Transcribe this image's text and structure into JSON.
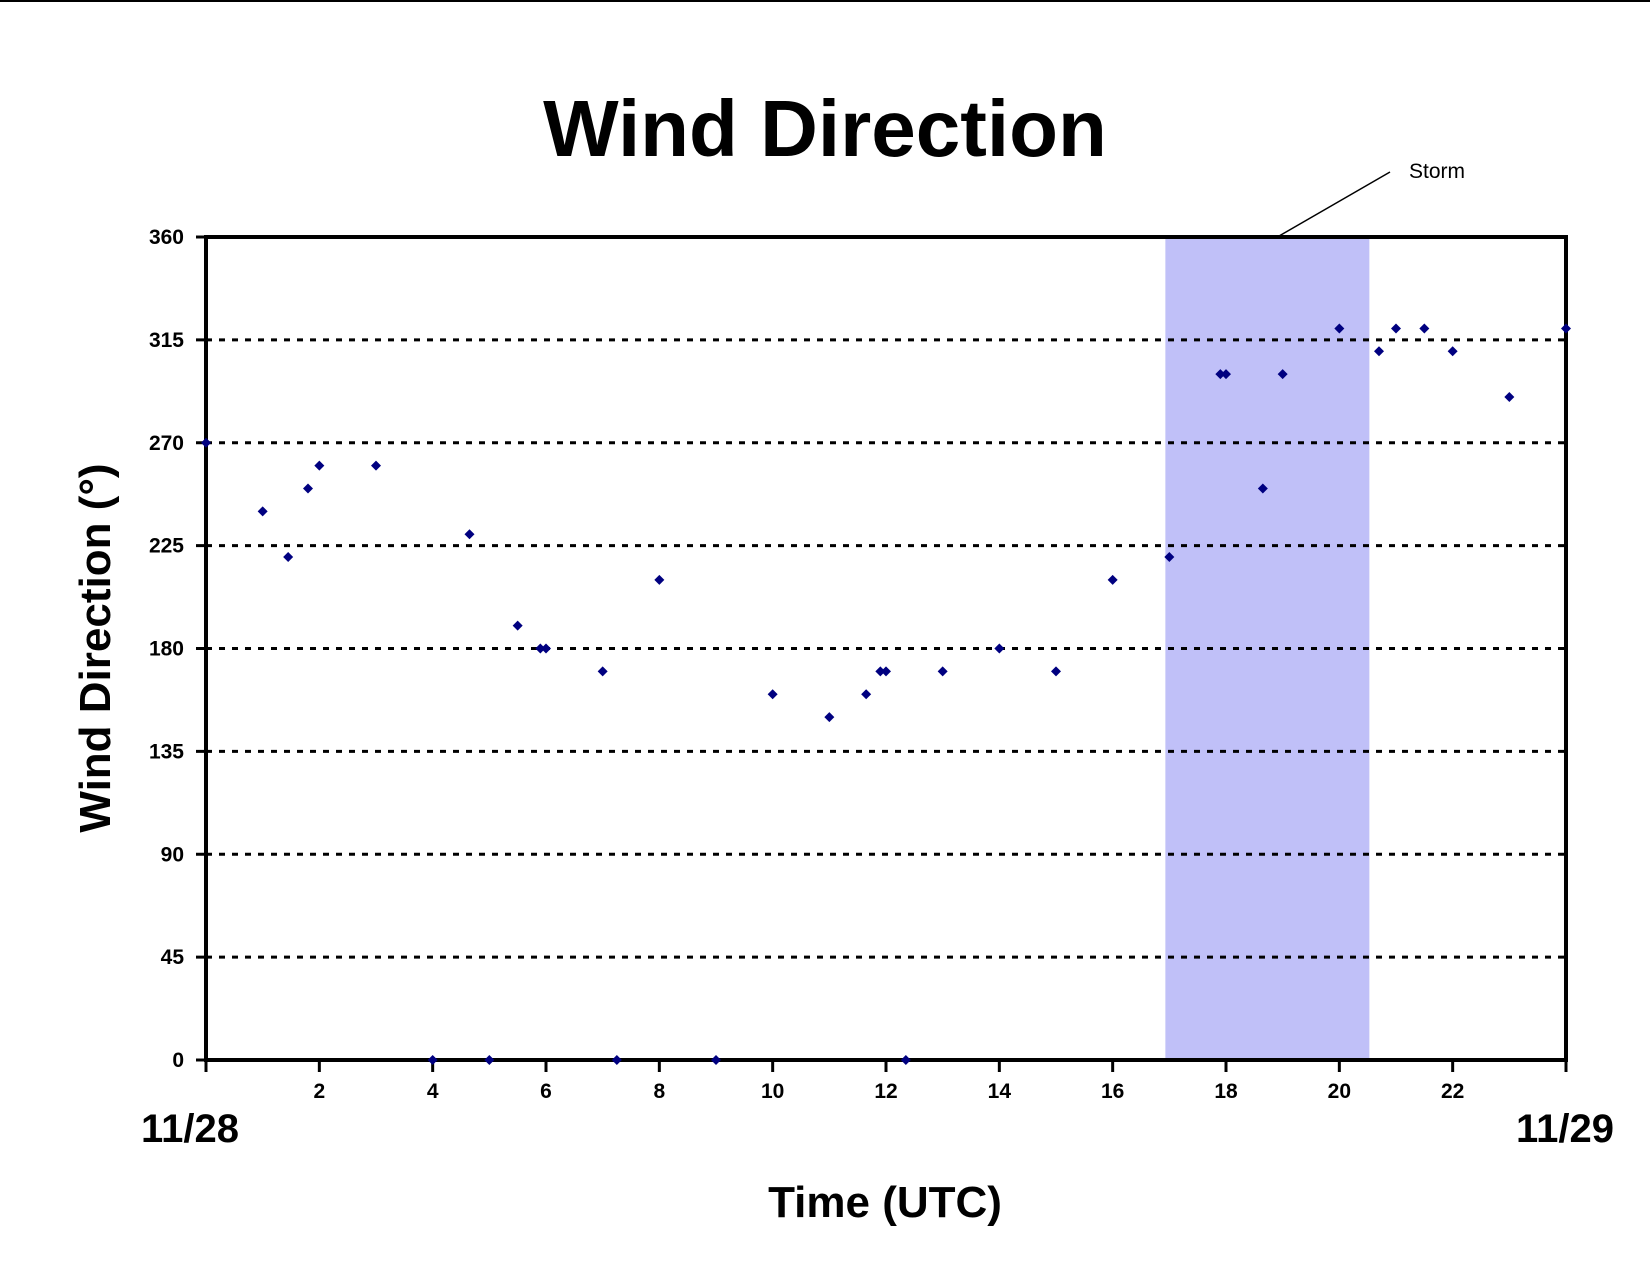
{
  "chart_data": {
    "type": "scatter",
    "title": "Wind Direction",
    "xlabel": "Time (UTC)",
    "ylabel": "Wind Direction (°)",
    "xlim": [
      0,
      24
    ],
    "ylim": [
      0,
      360
    ],
    "x_ticks": [
      2,
      4,
      6,
      8,
      10,
      12,
      14,
      16,
      18,
      20,
      22
    ],
    "y_ticks": [
      0,
      45,
      90,
      135,
      180,
      225,
      270,
      315,
      360
    ],
    "gridlines": [
      45,
      90,
      135,
      180,
      225,
      270,
      315
    ],
    "grid": "horizontal dotted",
    "date_labels": {
      "start": "11/28",
      "end": "11/29"
    },
    "annotation": {
      "label": "Storm",
      "x_start": 16.93,
      "x_end": 20.53
    },
    "colors": {
      "points": "#000080",
      "storm_band": "#c0c0f8",
      "frame": "#000000"
    },
    "points": [
      {
        "x": 0,
        "y": 270
      },
      {
        "x": 1,
        "y": 240
      },
      {
        "x": 1.45,
        "y": 220
      },
      {
        "x": 1.8,
        "y": 250
      },
      {
        "x": 2,
        "y": 260
      },
      {
        "x": 3,
        "y": 260
      },
      {
        "x": 4,
        "y": 0
      },
      {
        "x": 4.65,
        "y": 230
      },
      {
        "x": 5,
        "y": 0
      },
      {
        "x": 5.5,
        "y": 190
      },
      {
        "x": 5.9,
        "y": 180
      },
      {
        "x": 6,
        "y": 180
      },
      {
        "x": 7,
        "y": 170
      },
      {
        "x": 7.25,
        "y": 0
      },
      {
        "x": 8,
        "y": 210
      },
      {
        "x": 9,
        "y": 0
      },
      {
        "x": 10,
        "y": 160
      },
      {
        "x": 11,
        "y": 150
      },
      {
        "x": 11.65,
        "y": 160
      },
      {
        "x": 11.9,
        "y": 170
      },
      {
        "x": 12,
        "y": 170
      },
      {
        "x": 12.35,
        "y": 0
      },
      {
        "x": 13,
        "y": 170
      },
      {
        "x": 14,
        "y": 180
      },
      {
        "x": 15,
        "y": 170
      },
      {
        "x": 16,
        "y": 210
      },
      {
        "x": 17,
        "y": 220
      },
      {
        "x": 17.9,
        "y": 300
      },
      {
        "x": 18,
        "y": 300
      },
      {
        "x": 18.65,
        "y": 250
      },
      {
        "x": 19,
        "y": 300
      },
      {
        "x": 20,
        "y": 320
      },
      {
        "x": 20.7,
        "y": 310
      },
      {
        "x": 21,
        "y": 320
      },
      {
        "x": 21.5,
        "y": 320
      },
      {
        "x": 22,
        "y": 310
      },
      {
        "x": 23,
        "y": 290
      },
      {
        "x": 24,
        "y": 320
      }
    ]
  }
}
